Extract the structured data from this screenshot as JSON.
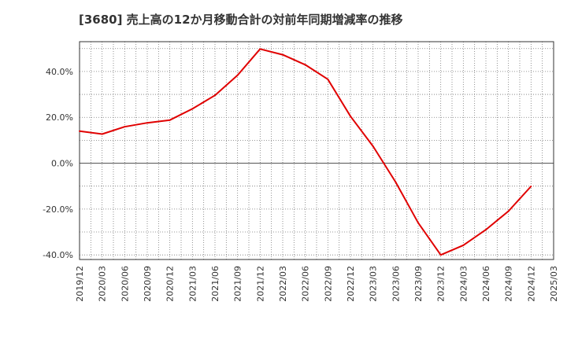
{
  "chart_data": {
    "type": "line",
    "title": "[3680]  売上高の12か月移動合計の対前年同期増減率の推移",
    "xlabel": "",
    "ylabel": "",
    "ylim": [
      -42,
      53
    ],
    "yticks": [
      -40,
      -20,
      0,
      20,
      40
    ],
    "ytick_labels": [
      "-40.0%",
      "-20.0%",
      "0.0%",
      "20.0%",
      "40.0%"
    ],
    "x_tick_labels": [
      "2019/12",
      "2020/03",
      "2020/06",
      "2020/09",
      "2020/12",
      "2021/03",
      "2021/06",
      "2021/09",
      "2021/12",
      "2022/03",
      "2022/06",
      "2022/09",
      "2022/12",
      "2023/03",
      "2023/06",
      "2023/09",
      "2023/12",
      "2024/03",
      "2024/06",
      "2024/09",
      "2024/12",
      "2025/03"
    ],
    "grid": true,
    "series": [
      {
        "name": "対前年同期増減率",
        "color": "#e00000",
        "x": [
          "2019/12",
          "2020/03",
          "2020/06",
          "2020/09",
          "2020/12",
          "2021/03",
          "2021/06",
          "2021/09",
          "2021/12",
          "2022/03",
          "2022/06",
          "2022/09",
          "2022/12",
          "2023/03",
          "2023/06",
          "2023/09",
          "2023/12",
          "2024/03",
          "2024/06",
          "2024/09",
          "2024/12"
        ],
        "values": [
          14.0,
          12.7,
          15.9,
          17.6,
          18.8,
          23.7,
          29.6,
          38.4,
          49.8,
          47.3,
          42.9,
          36.6,
          20.5,
          7.4,
          -8.2,
          -26.0,
          -40.0,
          -35.8,
          -29.0,
          -20.9,
          -10.1
        ]
      }
    ]
  }
}
